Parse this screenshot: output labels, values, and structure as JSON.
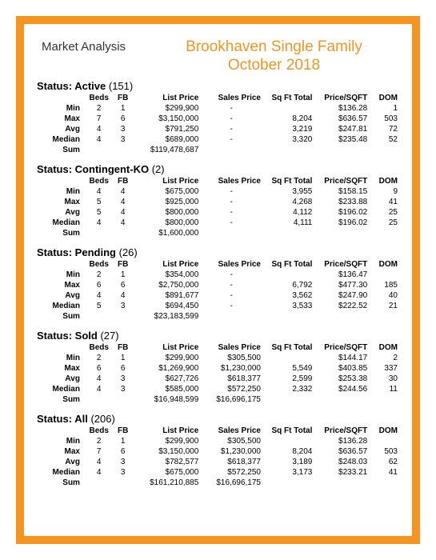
{
  "header": {
    "left": "Market Analysis",
    "title_line1": "Brookhaven Single Family",
    "title_line2": "October 2018"
  },
  "columns": [
    "",
    "Beds",
    "FB",
    "List Price",
    "Sales Price",
    "Sq Ft Total",
    "Price/SQFT",
    "DOM"
  ],
  "row_labels": [
    "Min",
    "Max",
    "Avg",
    "Median",
    "Sum"
  ],
  "status_prefix": "Status:",
  "colors": {
    "accent": "#f5941f",
    "text": "#000000",
    "background": "#ffffff"
  },
  "sections": [
    {
      "name": "Active",
      "count": "(151)",
      "rows": [
        [
          "2",
          "1",
          "$299,900",
          "-",
          "",
          "$136.28",
          "1"
        ],
        [
          "7",
          "6",
          "$3,150,000",
          "-",
          "8,204",
          "$636.57",
          "503"
        ],
        [
          "4",
          "3",
          "$791,250",
          "-",
          "3,219",
          "$247.81",
          "72"
        ],
        [
          "4",
          "3",
          "$689,000",
          "-",
          "3,320",
          "$235.48",
          "52"
        ],
        [
          "",
          "",
          "$119,478,687",
          "",
          "",
          "",
          ""
        ]
      ]
    },
    {
      "name": "Contingent-KO",
      "count": "(2)",
      "rows": [
        [
          "4",
          "4",
          "$675,000",
          "-",
          "3,955",
          "$158.15",
          "9"
        ],
        [
          "5",
          "4",
          "$925,000",
          "-",
          "4,268",
          "$233.88",
          "41"
        ],
        [
          "5",
          "4",
          "$800,000",
          "-",
          "4,112",
          "$196.02",
          "25"
        ],
        [
          "4",
          "4",
          "$800,000",
          "-",
          "4,111",
          "$196.02",
          "25"
        ],
        [
          "",
          "",
          "$1,600,000",
          "",
          "",
          "",
          ""
        ]
      ]
    },
    {
      "name": "Pending",
      "count": "(26)",
      "rows": [
        [
          "2",
          "1",
          "$354,000",
          "-",
          "",
          "$136.47",
          ""
        ],
        [
          "6",
          "6",
          "$2,750,000",
          "-",
          "6,792",
          "$477.30",
          "185"
        ],
        [
          "4",
          "4",
          "$891,677",
          "-",
          "3,562",
          "$247.90",
          "40"
        ],
        [
          "5",
          "3",
          "$694,450",
          "-",
          "3,533",
          "$222.52",
          "21"
        ],
        [
          "",
          "",
          "$23,183,599",
          "",
          "",
          "",
          ""
        ]
      ]
    },
    {
      "name": "Sold",
      "count": "(27)",
      "rows": [
        [
          "2",
          "1",
          "$299,900",
          "$305,500",
          "",
          "$144.17",
          "2"
        ],
        [
          "6",
          "6",
          "$1,269,900",
          "$1,230,000",
          "5,549",
          "$403.85",
          "337"
        ],
        [
          "4",
          "3",
          "$627,726",
          "$618,377",
          "2,599",
          "$253.38",
          "30"
        ],
        [
          "4",
          "3",
          "$585,000",
          "$572,250",
          "2,332",
          "$244.56",
          "11"
        ],
        [
          "",
          "",
          "$16,948,599",
          "$16,696,175",
          "",
          "",
          ""
        ]
      ]
    },
    {
      "name": "All",
      "count": "(206)",
      "rows": [
        [
          "2",
          "1",
          "$299,900",
          "$305,500",
          "",
          "$136.28",
          ""
        ],
        [
          "7",
          "6",
          "$3,150,000",
          "$1,230,000",
          "8,204",
          "$636.57",
          "503"
        ],
        [
          "4",
          "3",
          "$782,577",
          "$618,377",
          "3,189",
          "$248.03",
          "62"
        ],
        [
          "4",
          "3",
          "$675,000",
          "$572,250",
          "3,173",
          "$233.21",
          "41"
        ],
        [
          "",
          "",
          "$161,210,885",
          "$16,696,175",
          "",
          "",
          ""
        ]
      ]
    }
  ]
}
